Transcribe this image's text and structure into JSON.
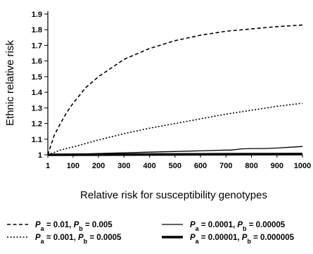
{
  "chart_data": {
    "type": "line",
    "title": "",
    "xlabel": "Relative risk for susceptibility genotypes",
    "ylabel": "Ethnic relative risk",
    "xlim": [
      1,
      1000
    ],
    "ylim": [
      1,
      1.9
    ],
    "x_ticks": [
      "1",
      "100",
      "200",
      "300",
      "400",
      "500",
      "600",
      "700",
      "800",
      "900",
      "1000"
    ],
    "y_ticks": [
      "1",
      "1.1",
      "1.2",
      "1.3",
      "1.4",
      "1.5",
      "1.6",
      "1.7",
      "1.8",
      "1.9"
    ],
    "grid": false,
    "legend_position": "bottom",
    "series": [
      {
        "name": "Pa = 0.01, Pb = 0.005",
        "legend": {
          "a": "0.01",
          "b": "0.005"
        },
        "style": "dashed",
        "x": [
          1,
          25,
          50,
          75,
          100,
          150,
          200,
          300,
          400,
          500,
          600,
          700,
          800,
          900,
          1000
        ],
        "y": [
          1.0,
          1.12,
          1.2,
          1.27,
          1.33,
          1.43,
          1.5,
          1.61,
          1.68,
          1.73,
          1.765,
          1.79,
          1.805,
          1.82,
          1.83
        ]
      },
      {
        "name": "Pa = 0.001, Pb = 0.0005",
        "legend": {
          "a": "0.001",
          "b": "0.0005"
        },
        "style": "dotted",
        "x": [
          1,
          50,
          100,
          200,
          300,
          400,
          500,
          600,
          700,
          800,
          900,
          1000
        ],
        "y": [
          1.0,
          1.03,
          1.05,
          1.095,
          1.135,
          1.17,
          1.2,
          1.23,
          1.26,
          1.285,
          1.31,
          1.33
        ]
      },
      {
        "name": "Pa = 0.0001, Pb = 0.00005",
        "legend": {
          "a": "0.0001",
          "b": "0.00005"
        },
        "style": "thin",
        "x": [
          1,
          100,
          200,
          300,
          400,
          500,
          600,
          700,
          720,
          760,
          800,
          850,
          900,
          950,
          1000
        ],
        "y": [
          1.0,
          1.004,
          1.008,
          1.013,
          1.017,
          1.021,
          1.025,
          1.03,
          1.03,
          1.038,
          1.04,
          1.04,
          1.043,
          1.048,
          1.053
        ]
      },
      {
        "name": "Pa = 0.00001, Pb = 0.000005",
        "legend": {
          "a": "0.00001",
          "b": "0.000005"
        },
        "style": "thick",
        "x": [
          1,
          200,
          400,
          600,
          800,
          1000
        ],
        "y": [
          1.0,
          1.001,
          1.002,
          1.003,
          1.004,
          1.005
        ]
      }
    ]
  }
}
